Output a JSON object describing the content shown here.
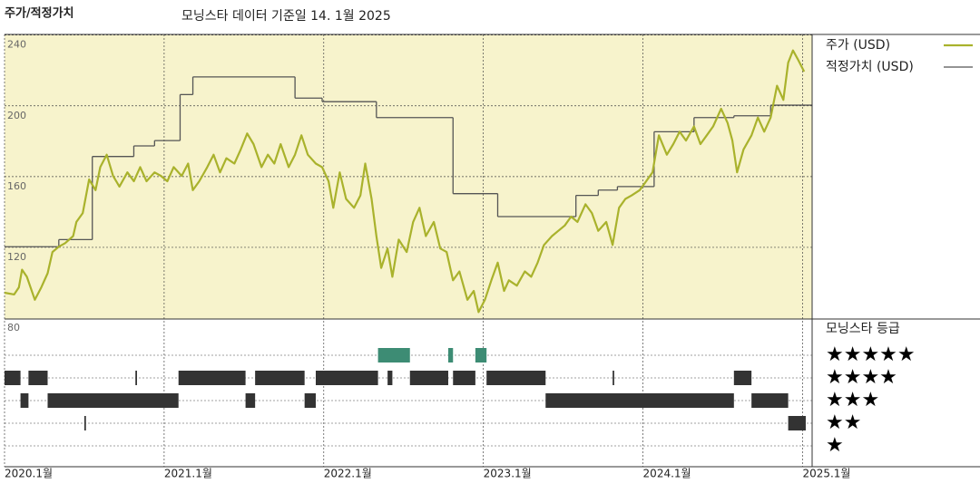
{
  "chart_data": {
    "type": "line",
    "title": "주가/적정가치",
    "subtitle": "모닝스타 데이터 기준일 14. 1월 2025",
    "xlim": [
      2020.0,
      2025.06
    ],
    "xticks": [
      {
        "value": 2020,
        "label": "2020.1월"
      },
      {
        "value": 2021,
        "label": "2021.1월"
      },
      {
        "value": 2022,
        "label": "2022.1월"
      },
      {
        "value": 2023,
        "label": "2023.1월"
      },
      {
        "value": 2024,
        "label": "2024.1월"
      },
      {
        "value": 2025,
        "label": "2025.1월"
      }
    ],
    "ylim": [
      80,
      246
    ],
    "yticks": [
      80,
      120,
      160,
      200,
      240
    ],
    "grid": true,
    "background": "#f7f3cc",
    "series": [
      {
        "name": "주가 (USD)",
        "color": "#a9b22c",
        "style": "line",
        "x": [
          2020.0,
          2020.06,
          2020.09,
          2020.11,
          2020.14,
          2020.19,
          2020.23,
          2020.27,
          2020.3,
          2020.34,
          2020.38,
          2020.43,
          2020.45,
          2020.49,
          2020.53,
          2020.57,
          2020.6,
          2020.64,
          2020.68,
          2020.72,
          2020.77,
          2020.81,
          2020.85,
          2020.89,
          2020.94,
          2020.98,
          2021.02,
          2021.06,
          2021.11,
          2021.15,
          2021.18,
          2021.22,
          2021.27,
          2021.31,
          2021.35,
          2021.39,
          2021.44,
          2021.48,
          2021.52,
          2021.56,
          2021.61,
          2021.65,
          2021.69,
          2021.73,
          2021.78,
          2021.82,
          2021.86,
          2021.9,
          2021.95,
          2021.99,
          2022.03,
          2022.06,
          2022.1,
          2022.14,
          2022.19,
          2022.23,
          2022.26,
          2022.3,
          2022.33,
          2022.36,
          2022.4,
          2022.43,
          2022.47,
          2022.52,
          2022.56,
          2022.6,
          2022.64,
          2022.69,
          2022.73,
          2022.77,
          2022.81,
          2022.85,
          2022.9,
          2022.94,
          2022.97,
          2023.01,
          2023.05,
          2023.09,
          2023.13,
          2023.16,
          2023.21,
          2023.26,
          2023.3,
          2023.34,
          2023.38,
          2023.43,
          2023.47,
          2023.51,
          2023.55,
          2023.59,
          2023.64,
          2023.68,
          2023.72,
          2023.77,
          2023.81,
          2023.85,
          2023.89,
          2023.93,
          2023.98,
          2024.02,
          2024.06,
          2024.1,
          2024.15,
          2024.19,
          2024.23,
          2024.27,
          2024.32,
          2024.36,
          2024.4,
          2024.44,
          2024.49,
          2024.53,
          2024.56,
          2024.59,
          2024.63,
          2024.68,
          2024.72,
          2024.76,
          2024.8,
          2024.84,
          2024.88,
          2024.91,
          2024.94,
          2024.97,
          2025.01
        ],
        "values": [
          100,
          99,
          103,
          113,
          109,
          96,
          103,
          111,
          123,
          126,
          128,
          132,
          140,
          145,
          164,
          158,
          171,
          178,
          166,
          160,
          168,
          163,
          171,
          163,
          168,
          166,
          163,
          171,
          166,
          173,
          158,
          163,
          171,
          178,
          168,
          176,
          173,
          181,
          190,
          184,
          171,
          178,
          173,
          184,
          171,
          178,
          189,
          178,
          173,
          171,
          163,
          148,
          168,
          153,
          148,
          155,
          173,
          153,
          132,
          114,
          125,
          109,
          130,
          123,
          140,
          148,
          132,
          140,
          125,
          123,
          107,
          112,
          96,
          101,
          89,
          96,
          107,
          117,
          101,
          107,
          104,
          112,
          109,
          117,
          127,
          132,
          135,
          138,
          143,
          140,
          150,
          145,
          135,
          140,
          127,
          148,
          153,
          155,
          158,
          163,
          168,
          189,
          178,
          184,
          191,
          186,
          194,
          184,
          189,
          194,
          204,
          196,
          186,
          168,
          181,
          189,
          199,
          191,
          199,
          217,
          209,
          230,
          237,
          232,
          225
        ]
      },
      {
        "name": "적정가치 (USD)",
        "color": "#555555",
        "style": "step",
        "x": [
          2020.0,
          2020.34,
          2020.55,
          2020.81,
          2020.94,
          2021.1,
          2021.18,
          2021.82,
          2021.99,
          2022.33,
          2022.81,
          2023.09,
          2023.58,
          2023.72,
          2023.84,
          2024.07,
          2024.32,
          2024.57,
          2024.8
        ],
        "values": [
          126,
          130,
          177,
          183,
          186,
          212,
          222,
          210,
          208,
          199,
          156,
          143,
          155,
          158,
          160,
          191,
          199,
          200,
          206
        ]
      }
    ],
    "rating_title": "모닝스타 등급",
    "rating_levels": [
      {
        "value": 5,
        "label": "★★★★★",
        "color": "#3d8c74"
      },
      {
        "value": 4,
        "label": "★★★★",
        "color": "#333333"
      },
      {
        "value": 3,
        "label": "★★★",
        "color": "#333333"
      },
      {
        "value": 2,
        "label": "★★",
        "color": "#333333"
      },
      {
        "value": 1,
        "label": "★",
        "color": "#333333"
      }
    ],
    "ratings": [
      {
        "start": 2022.34,
        "end": 2022.54,
        "stars": 5
      },
      {
        "start": 2022.78,
        "end": 2022.81,
        "stars": 5
      },
      {
        "start": 2022.95,
        "end": 2023.02,
        "stars": 5
      },
      {
        "start": 2020.0,
        "end": 2020.1,
        "stars": 4
      },
      {
        "start": 2020.15,
        "end": 2020.27,
        "stars": 4
      },
      {
        "start": 2020.82,
        "end": 2020.83,
        "stars": 4
      },
      {
        "start": 2021.09,
        "end": 2021.51,
        "stars": 4
      },
      {
        "start": 2021.57,
        "end": 2021.88,
        "stars": 4
      },
      {
        "start": 2021.95,
        "end": 2022.34,
        "stars": 4
      },
      {
        "start": 2022.4,
        "end": 2022.43,
        "stars": 4
      },
      {
        "start": 2022.54,
        "end": 2022.78,
        "stars": 4
      },
      {
        "start": 2022.81,
        "end": 2022.95,
        "stars": 4
      },
      {
        "start": 2023.02,
        "end": 2023.39,
        "stars": 4
      },
      {
        "start": 2023.81,
        "end": 2023.82,
        "stars": 4
      },
      {
        "start": 2024.57,
        "end": 2024.68,
        "stars": 4
      },
      {
        "start": 2020.1,
        "end": 2020.15,
        "stars": 3
      },
      {
        "start": 2020.27,
        "end": 2021.09,
        "stars": 3
      },
      {
        "start": 2021.51,
        "end": 2021.57,
        "stars": 3
      },
      {
        "start": 2021.88,
        "end": 2021.95,
        "stars": 3
      },
      {
        "start": 2023.39,
        "end": 2024.57,
        "stars": 3
      },
      {
        "start": 2024.68,
        "end": 2024.91,
        "stars": 3
      },
      {
        "start": 2020.5,
        "end": 2020.51,
        "stars": 2
      },
      {
        "start": 2024.91,
        "end": 2025.02,
        "stars": 2
      }
    ]
  }
}
